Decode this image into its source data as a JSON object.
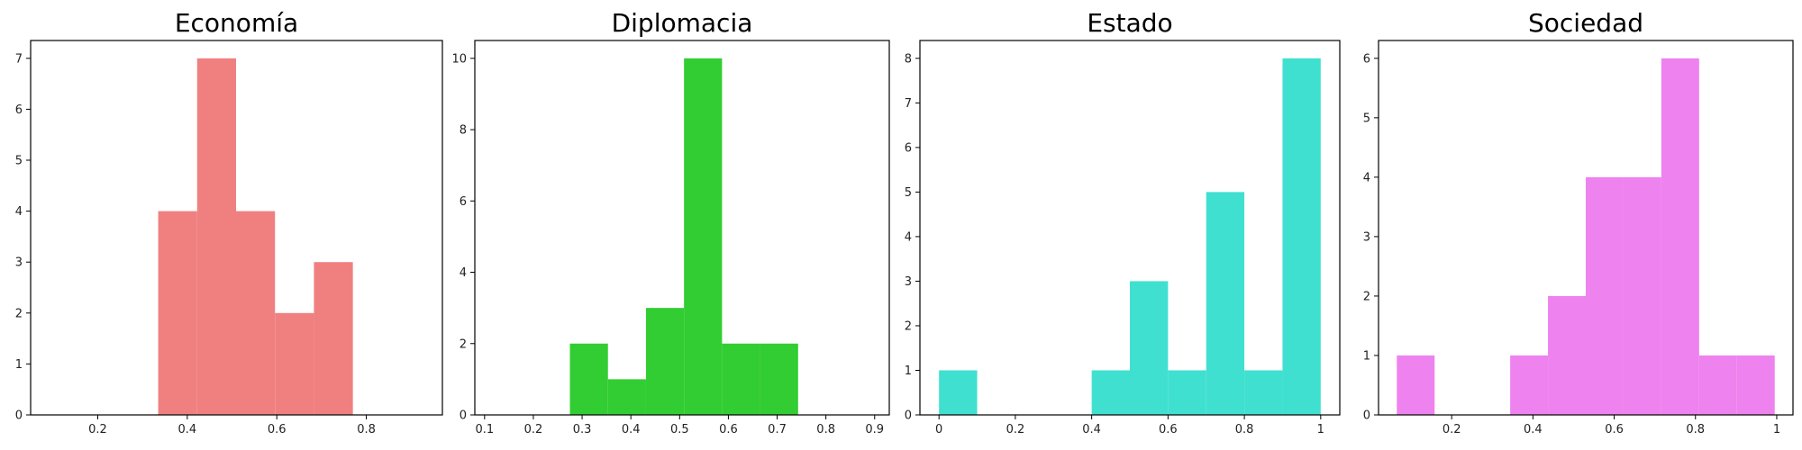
{
  "chart_data": [
    {
      "type": "bar",
      "title": "Economía",
      "color": "#F08080",
      "xlim": [
        0.05,
        0.97
      ],
      "ylim": [
        0,
        7.35
      ],
      "xticks": [
        0.2,
        0.4,
        0.6,
        0.8
      ],
      "yticks": [
        0,
        1,
        2,
        3,
        4,
        5,
        6,
        7
      ],
      "bins": [
        {
          "x0": 0.335,
          "x1": 0.422,
          "count": 4
        },
        {
          "x0": 0.422,
          "x1": 0.509,
          "count": 7
        },
        {
          "x0": 0.509,
          "x1": 0.596,
          "count": 4
        },
        {
          "x0": 0.596,
          "x1": 0.683,
          "count": 2
        },
        {
          "x0": 0.683,
          "x1": 0.77,
          "count": 3
        }
      ]
    },
    {
      "type": "bar",
      "title": "Diplomacia",
      "color": "#32CD32",
      "xlim": [
        0.08,
        0.93
      ],
      "ylim": [
        0,
        10.5
      ],
      "xticks": [
        0.1,
        0.2,
        0.3,
        0.4,
        0.5,
        0.6,
        0.7,
        0.8,
        0.9
      ],
      "yticks": [
        0,
        2,
        4,
        6,
        8,
        10
      ],
      "bins": [
        {
          "x0": 0.275,
          "x1": 0.353,
          "count": 2
        },
        {
          "x0": 0.353,
          "x1": 0.431,
          "count": 1
        },
        {
          "x0": 0.431,
          "x1": 0.509,
          "count": 3
        },
        {
          "x0": 0.509,
          "x1": 0.587,
          "count": 10
        },
        {
          "x0": 0.587,
          "x1": 0.665,
          "count": 2
        },
        {
          "x0": 0.665,
          "x1": 0.743,
          "count": 2
        }
      ]
    },
    {
      "type": "bar",
      "title": "Estado",
      "color": "#40E0D0",
      "xlim": [
        -0.05,
        1.05
      ],
      "ylim": [
        0,
        8.4
      ],
      "xticks": [
        0.0,
        0.2,
        0.4,
        0.6,
        0.8,
        1.0
      ],
      "yticks": [
        0,
        1,
        2,
        3,
        4,
        5,
        6,
        7,
        8
      ],
      "bins": [
        {
          "x0": 0.0,
          "x1": 0.1,
          "count": 1
        },
        {
          "x0": 0.1,
          "x1": 0.2,
          "count": 0
        },
        {
          "x0": 0.2,
          "x1": 0.3,
          "count": 0
        },
        {
          "x0": 0.3,
          "x1": 0.4,
          "count": 0
        },
        {
          "x0": 0.4,
          "x1": 0.5,
          "count": 1
        },
        {
          "x0": 0.5,
          "x1": 0.6,
          "count": 3
        },
        {
          "x0": 0.6,
          "x1": 0.7,
          "count": 1
        },
        {
          "x0": 0.7,
          "x1": 0.8,
          "count": 5
        },
        {
          "x0": 0.8,
          "x1": 0.9,
          "count": 1
        },
        {
          "x0": 0.9,
          "x1": 1.0,
          "count": 8
        }
      ]
    },
    {
      "type": "bar",
      "title": "Sociedad",
      "color": "#EE82EE",
      "xlim": [
        0.02,
        1.04
      ],
      "ylim": [
        0,
        6.3
      ],
      "xticks": [
        0.2,
        0.4,
        0.6,
        0.8,
        1.0
      ],
      "yticks": [
        0,
        1,
        2,
        3,
        4,
        5,
        6
      ],
      "bins": [
        {
          "x0": 0.065,
          "x1": 0.158,
          "count": 1
        },
        {
          "x0": 0.158,
          "x1": 0.251,
          "count": 0
        },
        {
          "x0": 0.251,
          "x1": 0.344,
          "count": 0
        },
        {
          "x0": 0.344,
          "x1": 0.437,
          "count": 1
        },
        {
          "x0": 0.437,
          "x1": 0.53,
          "count": 2
        },
        {
          "x0": 0.53,
          "x1": 0.623,
          "count": 4
        },
        {
          "x0": 0.623,
          "x1": 0.716,
          "count": 4
        },
        {
          "x0": 0.716,
          "x1": 0.809,
          "count": 6
        },
        {
          "x0": 0.809,
          "x1": 0.902,
          "count": 1
        },
        {
          "x0": 0.902,
          "x1": 0.995,
          "count": 1
        }
      ]
    }
  ]
}
